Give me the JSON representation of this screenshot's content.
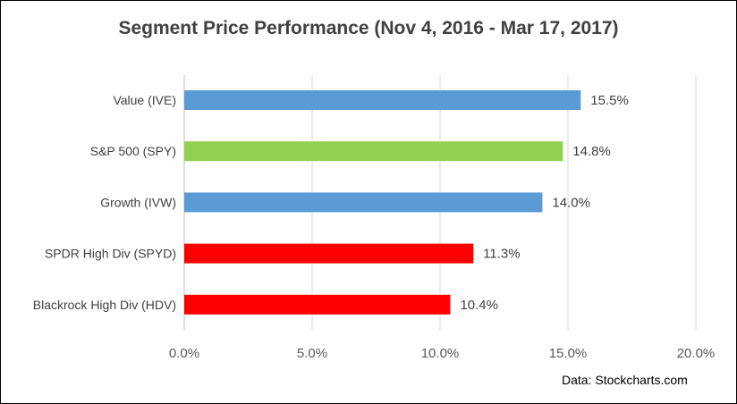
{
  "chart_data": {
    "type": "bar",
    "orientation": "horizontal",
    "title": "Segment Price Performance (Nov 4, 2016 - Mar 17, 2017)",
    "categories": [
      "Value (IVE)",
      "S&P 500 (SPY)",
      "Growth (IVW)",
      "SPDR High Div (SPYD)",
      "Blackrock High Div (HDV)"
    ],
    "values": [
      15.5,
      14.8,
      14.0,
      11.3,
      10.4
    ],
    "value_labels": [
      "15.5%",
      "14.8%",
      "14.0%",
      "11.3%",
      "10.4%"
    ],
    "bar_colors": [
      "#5b9bd5",
      "#92d050",
      "#5b9bd5",
      "#ff0000",
      "#ff0000"
    ],
    "xlim": [
      0,
      20
    ],
    "xticks": [
      0,
      5,
      10,
      15,
      20
    ],
    "xtick_labels": [
      "0.0%",
      "5.0%",
      "10.0%",
      "15.0%",
      "20.0%"
    ],
    "xlabel": "",
    "ylabel": "",
    "grid": "vertical",
    "grid_color": "#d9d9d9",
    "legend": "none"
  },
  "source_note": "Data: Stockcharts.com"
}
